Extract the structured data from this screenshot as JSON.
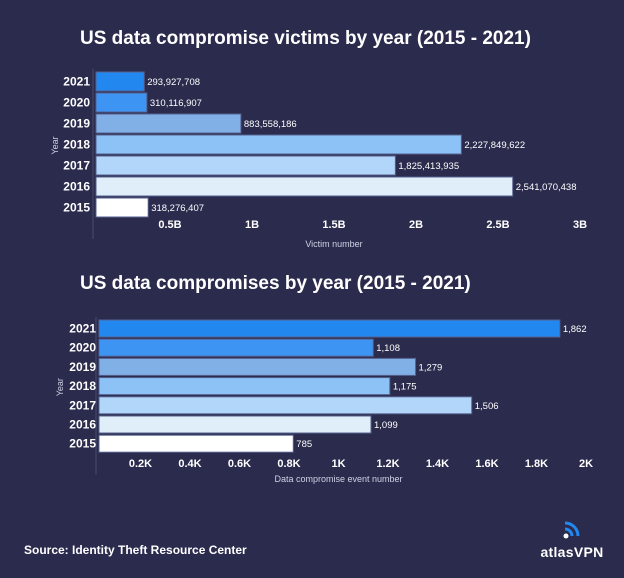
{
  "chart_data": [
    {
      "type": "bar",
      "orientation": "horizontal",
      "title": "US data compromise victims by year  (2015 - 2021)",
      "xlabel": "Victim number",
      "ylabel": "Year",
      "categories": [
        "2021",
        "2020",
        "2019",
        "2018",
        "2017",
        "2016",
        "2015"
      ],
      "values": [
        293927708,
        310116907,
        883558186,
        2227849622,
        1825413935,
        2541070438,
        318276407
      ],
      "data_labels": [
        "293,927,708",
        "310,116,907",
        "883,558,186",
        "2,227,849,622",
        "1,825,413,935",
        "2,541,070,438",
        "318,276,407"
      ],
      "xlim": [
        0,
        3000000000
      ],
      "xticks": [
        500000000,
        1000000000,
        1500000000,
        2000000000,
        2500000000,
        3000000000
      ],
      "xtick_labels": [
        "0.5B",
        "1B",
        "1.5B",
        "2B",
        "2.5B",
        "3B"
      ],
      "colors": [
        "#2387f0",
        "#3d94f2",
        "#80b0e5",
        "#8dc2f7",
        "#b2d5fa",
        "#e0eefa",
        "#ffffff"
      ],
      "grid": false
    },
    {
      "type": "bar",
      "orientation": "horizontal",
      "title": "US data compromises by year  (2015 - 2021)",
      "xlabel": "Data compromise event number",
      "ylabel": "Year",
      "categories": [
        "2021",
        "2020",
        "2019",
        "2018",
        "2017",
        "2016",
        "2015"
      ],
      "values": [
        1862,
        1108,
        1279,
        1175,
        1506,
        1099,
        785
      ],
      "data_labels": [
        "1,862",
        "1,108",
        "1,279",
        "1,175",
        "1,506",
        "1,099",
        "785"
      ],
      "xlim": [
        0,
        2000
      ],
      "xticks": [
        200,
        400,
        600,
        800,
        1000,
        1200,
        1400,
        1600,
        1800,
        2000
      ],
      "xtick_labels": [
        "0.2K",
        "0.4K",
        "0.6K",
        "0.8K",
        "1K",
        "1.2K",
        "1.4K",
        "1.6K",
        "1.8K",
        "2K"
      ],
      "colors": [
        "#2387f0",
        "#3d94f2",
        "#80b0e5",
        "#8dc2f7",
        "#b2d5fa",
        "#e0eefa",
        "#ffffff"
      ],
      "grid": false
    }
  ],
  "footer": {
    "source": "Source: Identity Theft Resource Center",
    "brand": "atlasVPN",
    "brand_color": "#2387f0"
  }
}
